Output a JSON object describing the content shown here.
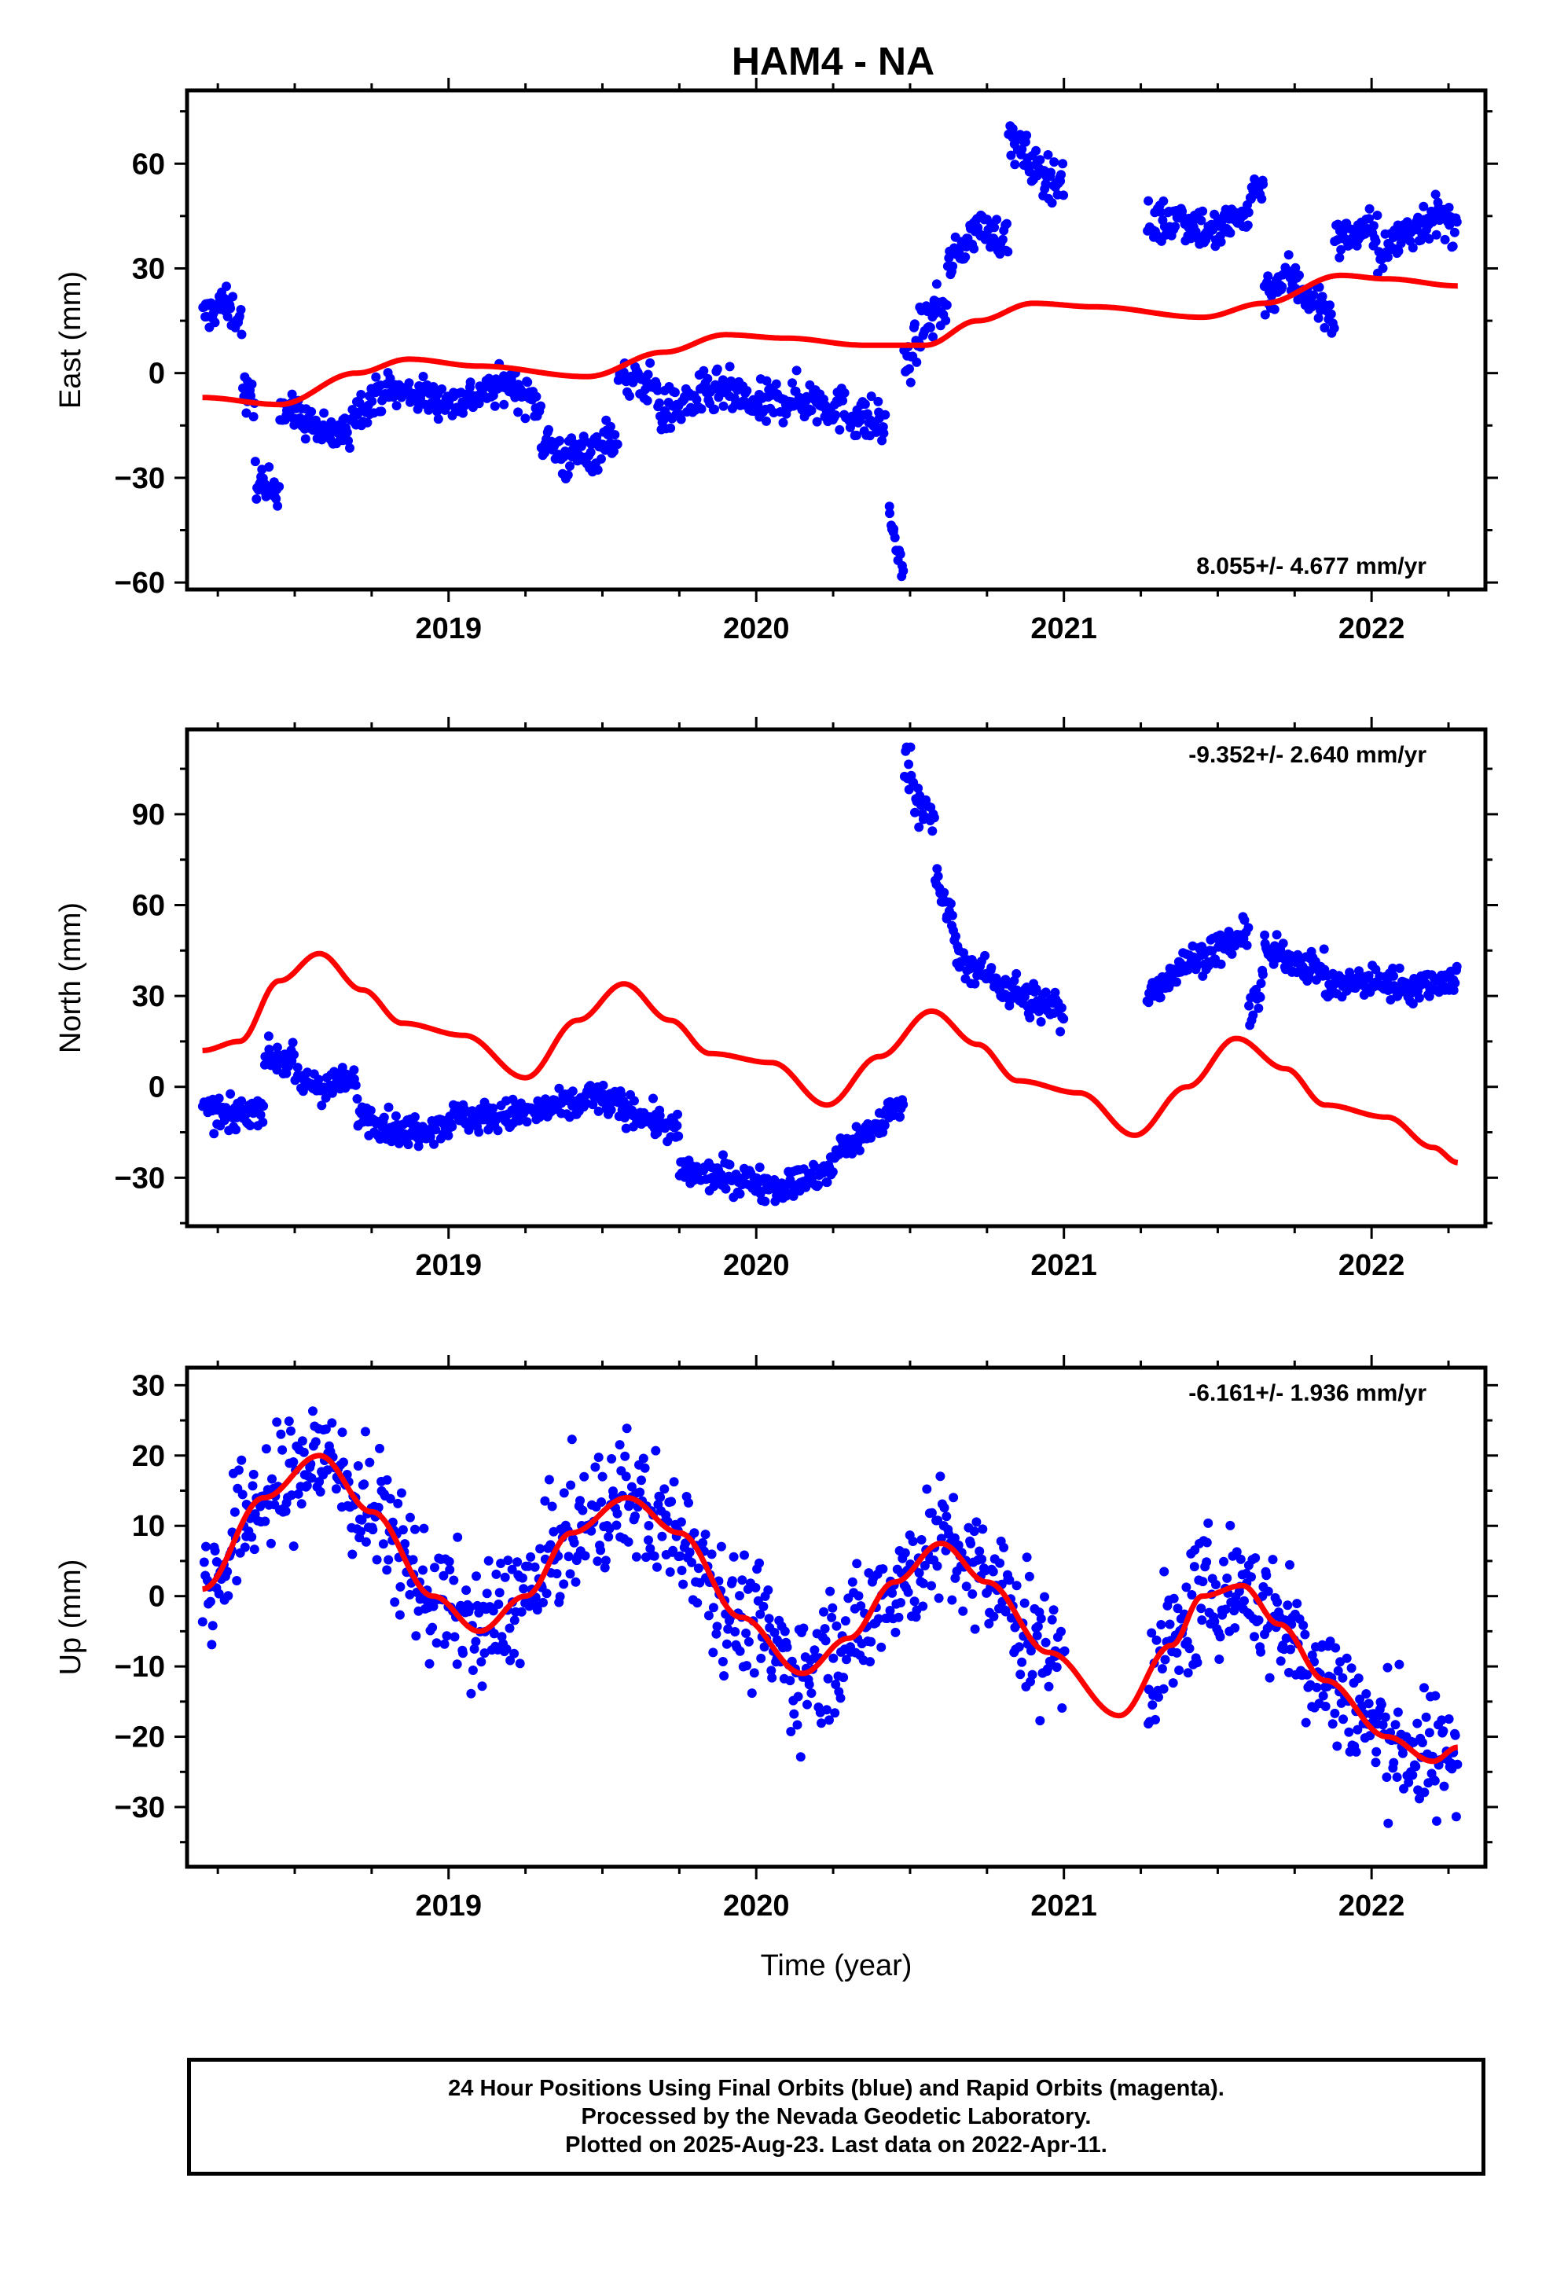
{
  "title": "HAM4 - NA",
  "chart_data": [
    {
      "type": "scatter",
      "ylabel": "East (mm)",
      "xlim": [
        2018.15,
        2022.37
      ],
      "ylim": [
        -62,
        81
      ],
      "yticks": [
        -60,
        -30,
        0,
        30,
        60
      ],
      "xticks": [
        2019,
        2020,
        2021,
        2022
      ],
      "rate_label": "8.055+/- 4.677 mm/yr",
      "rate_position": "bottom-right",
      "grid": false,
      "series": [
        {
          "color": "#0000ff",
          "kind": "points",
          "segments": [
            {
              "t0": 2018.2,
              "t1": 2018.33,
              "ys": [
                16,
                20,
                15
              ],
              "noise": 4
            },
            {
              "t0": 2018.33,
              "t1": 2018.37,
              "ys": [
                -5,
                -10
              ],
              "noise": 5
            },
            {
              "t0": 2018.37,
              "t1": 2018.45,
              "ys": [
                -28,
                -35,
                -30
              ],
              "noise": 5
            },
            {
              "t0": 2018.45,
              "t1": 2018.68,
              "ys": [
                -10,
                -13,
                -18,
                -17
              ],
              "noise": 4
            },
            {
              "t0": 2018.68,
              "t1": 2019.0,
              "ys": [
                -12,
                -5,
                -6,
                -8
              ],
              "noise": 4
            },
            {
              "t0": 2019.0,
              "t1": 2019.3,
              "ys": [
                -9,
                -6,
                -3,
                -10
              ],
              "noise": 4
            },
            {
              "t0": 2019.3,
              "t1": 2019.55,
              "ys": [
                -18,
                -25,
                -22,
                -17
              ],
              "noise": 5
            },
            {
              "t0": 2019.55,
              "t1": 2019.68,
              "ys": [
                -2,
                -3
              ],
              "noise": 4
            },
            {
              "t0": 2019.68,
              "t1": 2020.0,
              "ys": [
                -12,
                -8,
                -5,
                -10
              ],
              "noise": 5
            },
            {
              "t0": 2020.0,
              "t1": 2020.42,
              "ys": [
                -10,
                -7,
                -8,
                -12,
                -15
              ],
              "noise": 5
            },
            {
              "t0": 2020.43,
              "t1": 2020.48,
              "ys": [
                -38,
                -50,
                -58
              ],
              "noise": 3
            },
            {
              "t0": 2020.48,
              "t1": 2020.62,
              "ys": [
                0,
                15,
                20
              ],
              "noise": 5
            },
            {
              "t0": 2020.62,
              "t1": 2020.82,
              "ys": [
                30,
                42,
                38
              ],
              "noise": 4
            },
            {
              "t0": 2020.82,
              "t1": 2021.0,
              "ys": [
                68,
                58,
                55
              ],
              "noise": 5
            },
            {
              "t0": 2021.27,
              "t1": 2021.6,
              "ys": [
                42,
                45,
                40,
                46
              ],
              "noise": 5
            },
            {
              "t0": 2021.6,
              "t1": 2021.65,
              "ys": [
                50,
                55
              ],
              "noise": 4
            },
            {
              "t0": 2021.65,
              "t1": 2021.88,
              "ys": [
                22,
                28,
                22,
                15
              ],
              "noise": 5
            },
            {
              "t0": 2021.88,
              "t1": 2022.02,
              "ys": [
                38,
                42
              ],
              "noise": 4
            },
            {
              "t0": 2022.02,
              "t1": 2022.28,
              "ys": [
                32,
                40,
                45,
                42
              ],
              "noise": 5
            }
          ]
        },
        {
          "color": "#ff0000",
          "kind": "line",
          "knots": [
            [
              2018.2,
              -7
            ],
            [
              2018.45,
              -9
            ],
            [
              2018.7,
              0
            ],
            [
              2018.87,
              4
            ],
            [
              2019.1,
              2
            ],
            [
              2019.45,
              -1
            ],
            [
              2019.7,
              6
            ],
            [
              2019.9,
              11
            ],
            [
              2020.1,
              10
            ],
            [
              2020.35,
              8
            ],
            [
              2020.55,
              8
            ],
            [
              2020.72,
              15
            ],
            [
              2020.9,
              20
            ],
            [
              2021.1,
              19
            ],
            [
              2021.45,
              16
            ],
            [
              2021.65,
              20
            ],
            [
              2021.9,
              28
            ],
            [
              2022.05,
              27
            ],
            [
              2022.28,
              25
            ]
          ]
        }
      ]
    },
    {
      "type": "scatter",
      "ylabel": "North (mm)",
      "xlim": [
        2018.15,
        2022.37
      ],
      "ylim": [
        -46,
        118
      ],
      "yticks": [
        -30,
        0,
        30,
        60,
        90
      ],
      "xticks": [
        2019,
        2020,
        2021,
        2022
      ],
      "rate_label": "-9.352+/- 2.640 mm/yr",
      "rate_position": "top-right",
      "grid": false,
      "series": [
        {
          "color": "#0000ff",
          "kind": "points",
          "segments": [
            {
              "t0": 2018.2,
              "t1": 2018.4,
              "ys": [
                -8,
                -10,
                -6
              ],
              "noise": 4
            },
            {
              "t0": 2018.4,
              "t1": 2018.5,
              "ys": [
                10,
                8
              ],
              "noise": 4
            },
            {
              "t0": 2018.5,
              "t1": 2018.7,
              "ys": [
                2,
                0,
                2
              ],
              "noise": 4
            },
            {
              "t0": 2018.7,
              "t1": 2019.0,
              "ys": [
                -8,
                -15,
                -12
              ],
              "noise": 4
            },
            {
              "t0": 2019.0,
              "t1": 2019.45,
              "ys": [
                -10,
                -10,
                -8,
                -5
              ],
              "noise": 4
            },
            {
              "t0": 2019.45,
              "t1": 2019.75,
              "ys": [
                -2,
                -8,
                -15
              ],
              "noise": 4
            },
            {
              "t0": 2019.75,
              "t1": 2020.25,
              "ys": [
                -28,
                -30,
                -33,
                -28
              ],
              "noise": 4
            },
            {
              "t0": 2020.25,
              "t1": 2020.48,
              "ys": [
                -22,
                -15,
                -5
              ],
              "noise": 4
            },
            {
              "t0": 2020.48,
              "t1": 2020.58,
              "ys": [
                110,
                95,
                85
              ],
              "noise": 6
            },
            {
              "t0": 2020.58,
              "t1": 2020.65,
              "ys": [
                70,
                50
              ],
              "noise": 5
            },
            {
              "t0": 2020.65,
              "t1": 2020.82,
              "ys": [
                42,
                38,
                32
              ],
              "noise": 4
            },
            {
              "t0": 2020.82,
              "t1": 2021.0,
              "ys": [
                32,
                28,
                25
              ],
              "noise": 5
            },
            {
              "t0": 2021.27,
              "t1": 2021.6,
              "ys": [
                30,
                40,
                45,
                50
              ],
              "noise": 4
            },
            {
              "t0": 2021.6,
              "t1": 2021.65,
              "ys": [
                25,
                35
              ],
              "noise": 5
            },
            {
              "t0": 2021.65,
              "t1": 2021.85,
              "ys": [
                45,
                42,
                38
              ],
              "noise": 4
            },
            {
              "t0": 2021.85,
              "t1": 2022.28,
              "ys": [
                33,
                35,
                33,
                36
              ],
              "noise": 4
            }
          ]
        },
        {
          "color": "#ff0000",
          "kind": "line",
          "knots": [
            [
              2018.2,
              12
            ],
            [
              2018.32,
              15
            ],
            [
              2018.45,
              35
            ],
            [
              2018.58,
              44
            ],
            [
              2018.72,
              32
            ],
            [
              2018.85,
              21
            ],
            [
              2019.05,
              17
            ],
            [
              2019.25,
              3
            ],
            [
              2019.42,
              22
            ],
            [
              2019.57,
              34
            ],
            [
              2019.72,
              22
            ],
            [
              2019.85,
              11
            ],
            [
              2020.05,
              8
            ],
            [
              2020.23,
              -6
            ],
            [
              2020.4,
              10
            ],
            [
              2020.57,
              25
            ],
            [
              2020.72,
              14
            ],
            [
              2020.85,
              2
            ],
            [
              2021.05,
              -2
            ],
            [
              2021.23,
              -16
            ],
            [
              2021.4,
              0
            ],
            [
              2021.56,
              16
            ],
            [
              2021.72,
              6
            ],
            [
              2021.85,
              -6
            ],
            [
              2022.05,
              -10
            ],
            [
              2022.2,
              -20
            ],
            [
              2022.28,
              -25
            ]
          ]
        }
      ]
    },
    {
      "type": "scatter",
      "ylabel": "Up (mm)",
      "xlabel": "Time (year)",
      "xlim": [
        2018.15,
        2022.37
      ],
      "ylim": [
        -38.5,
        32.5
      ],
      "yticks": [
        -30,
        -20,
        -10,
        0,
        10,
        20,
        30
      ],
      "xticks": [
        2019,
        2020,
        2021,
        2022
      ],
      "rate_label": "-6.161+/- 1.936 mm/yr",
      "rate_position": "top-right",
      "grid": false,
      "series": [
        {
          "color": "#0000ff",
          "kind": "points",
          "scatter_around_line": true,
          "noise": 7
        },
        {
          "color": "#ff0000",
          "kind": "line",
          "knots": [
            [
              2018.2,
              1
            ],
            [
              2018.4,
              14
            ],
            [
              2018.58,
              20
            ],
            [
              2018.75,
              12
            ],
            [
              2018.95,
              0
            ],
            [
              2019.1,
              -5
            ],
            [
              2019.25,
              0
            ],
            [
              2019.4,
              9
            ],
            [
              2019.58,
              14
            ],
            [
              2019.75,
              9
            ],
            [
              2019.95,
              -3
            ],
            [
              2020.15,
              -11
            ],
            [
              2020.3,
              -6
            ],
            [
              2020.45,
              2
            ],
            [
              2020.6,
              7.5
            ],
            [
              2020.75,
              2
            ],
            [
              2020.95,
              -8
            ],
            [
              2021.18,
              -17
            ],
            [
              2021.35,
              -7
            ],
            [
              2021.45,
              0
            ],
            [
              2021.58,
              1.5
            ],
            [
              2021.7,
              -4
            ],
            [
              2021.85,
              -12
            ],
            [
              2022.05,
              -20
            ],
            [
              2022.2,
              -23.5
            ],
            [
              2022.28,
              -21.5
            ]
          ]
        }
      ]
    }
  ],
  "caption": {
    "line1": "24 Hour Positions Using Final Orbits (blue) and Rapid Orbits (magenta).",
    "line2": "Processed by the Nevada Geodetic Laboratory.",
    "line3": "Plotted on 2025-Aug-23. Last data on 2022-Apr-11."
  }
}
